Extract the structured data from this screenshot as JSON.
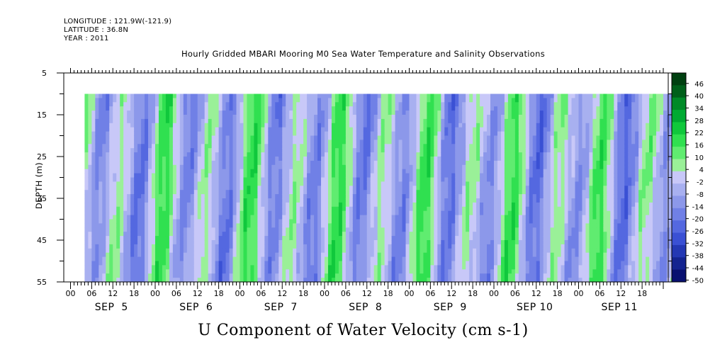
{
  "header": {
    "longitude": "LONGITUDE : 121.9W(-121.9)",
    "latitude": "LATITUDE : 36.8N",
    "year": "YEAR : 2011"
  },
  "chart_data": {
    "type": "heatmap",
    "title": "Hourly Gridded MBARI Mooring M0 Sea Water Temperature and Salinity Observations",
    "xlabel": "U Component of Water Velocity (cm s-1)",
    "ylabel": "DEPTH (m)",
    "y_ticks": [
      "5",
      "15",
      "25",
      "35",
      "45",
      "55"
    ],
    "y_range": [
      5,
      55
    ],
    "y_inverted": true,
    "data_depth_range": [
      10,
      55
    ],
    "x_hour_ticks": [
      "00",
      "06",
      "12",
      "18",
      "00",
      "06",
      "12",
      "18",
      "00",
      "06",
      "12",
      "18",
      "00",
      "06",
      "12",
      "18",
      "00",
      "06",
      "12",
      "18",
      "00",
      "06",
      "12",
      "18",
      "00",
      "06",
      "12",
      "18"
    ],
    "x_dates": [
      "SEP  5",
      "SEP  6",
      "SEP  7",
      "SEP  8",
      "SEP  9",
      "SEP 10",
      "SEP 11"
    ],
    "colorbar_labels": [
      "46",
      "40",
      "34",
      "28",
      "22",
      "16",
      "10",
      "4",
      "-2",
      "-8",
      "-14",
      "-20",
      "-26",
      "-32",
      "-38",
      "-44",
      "-50"
    ],
    "colorbar_colors": [
      "#004010",
      "#00601a",
      "#008a28",
      "#00aa32",
      "#10c83c",
      "#30e050",
      "#60ec70",
      "#9af098",
      "#c8c8f8",
      "#a8b0f0",
      "#8c98ea",
      "#7080e6",
      "#5468e0",
      "#3a50d4",
      "#2438b4",
      "#142490",
      "#081070"
    ],
    "data_start": "SEP 5, 00",
    "data_end": "SEP 11, 22",
    "hourly_columns": 167,
    "value_range_observed": [
      -28,
      28
    ],
    "grid": false
  }
}
